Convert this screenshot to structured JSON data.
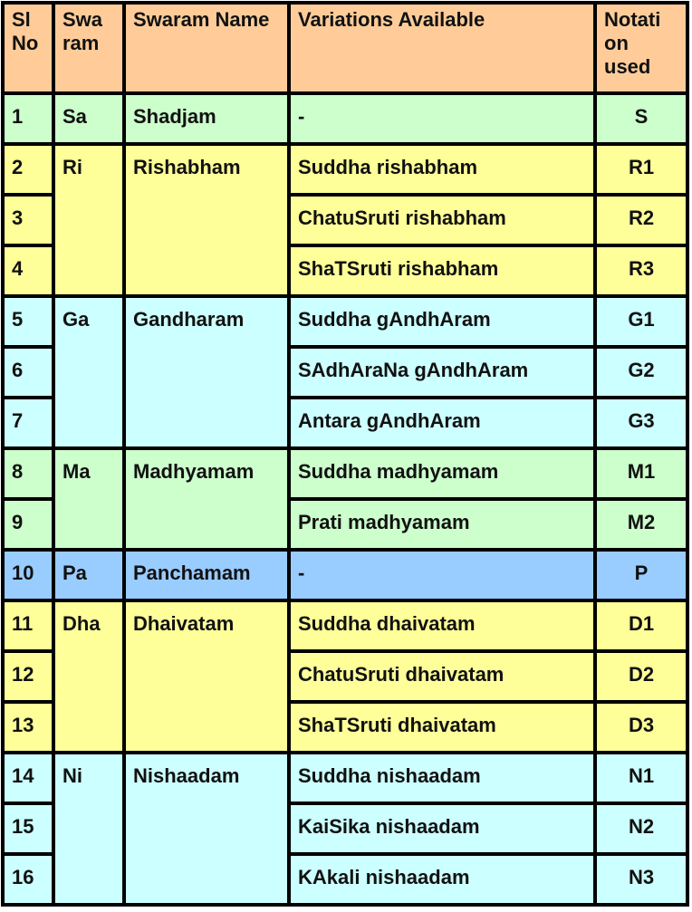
{
  "headers": [
    "Sl No",
    "Swa ram",
    "Swaram Name",
    "Variations Available",
    "Notati on used"
  ],
  "colors": {
    "header": "#FFCC99",
    "green": "#CCFFCC",
    "yellow": "#FFFF99",
    "cyan": "#CCFFFF",
    "blue": "#99CCFF"
  },
  "groups": [
    {
      "swaram": "Sa",
      "name": "Shadjam",
      "color": "green",
      "rows": [
        {
          "no": "1",
          "variation": "-",
          "notation": "S"
        }
      ]
    },
    {
      "swaram": "Ri",
      "name": "Rishabham",
      "color": "yellow",
      "rows": [
        {
          "no": "2",
          "variation": "Suddha rishabham",
          "notation": "R1"
        },
        {
          "no": "3",
          "variation": "ChatuSruti rishabham",
          "notation": "R2"
        },
        {
          "no": "4",
          "variation": "ShaTSruti rishabham",
          "notation": "R3"
        }
      ]
    },
    {
      "swaram": "Ga",
      "name": "Gandharam",
      "color": "cyan",
      "rows": [
        {
          "no": "5",
          "variation": "Suddha gAndhAram",
          "notation": "G1"
        },
        {
          "no": "6",
          "variation": "SAdhAraNa gAndhAram",
          "notation": "G2"
        },
        {
          "no": "7",
          "variation": "Antara gAndhAram",
          "notation": "G3"
        }
      ]
    },
    {
      "swaram": "Ma",
      "name": "Madhyamam",
      "color": "green",
      "rows": [
        {
          "no": "8",
          "variation": "Suddha madhyamam",
          "notation": "M1"
        },
        {
          "no": "9",
          "variation": "Prati madhyamam",
          "notation": "M2"
        }
      ]
    },
    {
      "swaram": "Pa",
      "name": "Panchamam",
      "color": "blue",
      "rows": [
        {
          "no": "10",
          "variation": "-",
          "notation": "P"
        }
      ]
    },
    {
      "swaram": "Dha",
      "name": "Dhaivatam",
      "color": "yellow",
      "rows": [
        {
          "no": "11",
          "variation": "Suddha dhaivatam",
          "notation": "D1"
        },
        {
          "no": "12",
          "variation": "ChatuSruti dhaivatam",
          "notation": "D2"
        },
        {
          "no": "13",
          "variation": "ShaTSruti dhaivatam",
          "notation": "D3"
        }
      ]
    },
    {
      "swaram": "Ni",
      "name": "Nishaadam",
      "color": "cyan",
      "rows": [
        {
          "no": "14",
          "variation": "Suddha nishaadam",
          "notation": "N1"
        },
        {
          "no": "15",
          "variation": "KaiSika nishaadam",
          "notation": "N2"
        },
        {
          "no": "16",
          "variation": "KAkali nishaadam",
          "notation": "N3"
        }
      ]
    }
  ]
}
